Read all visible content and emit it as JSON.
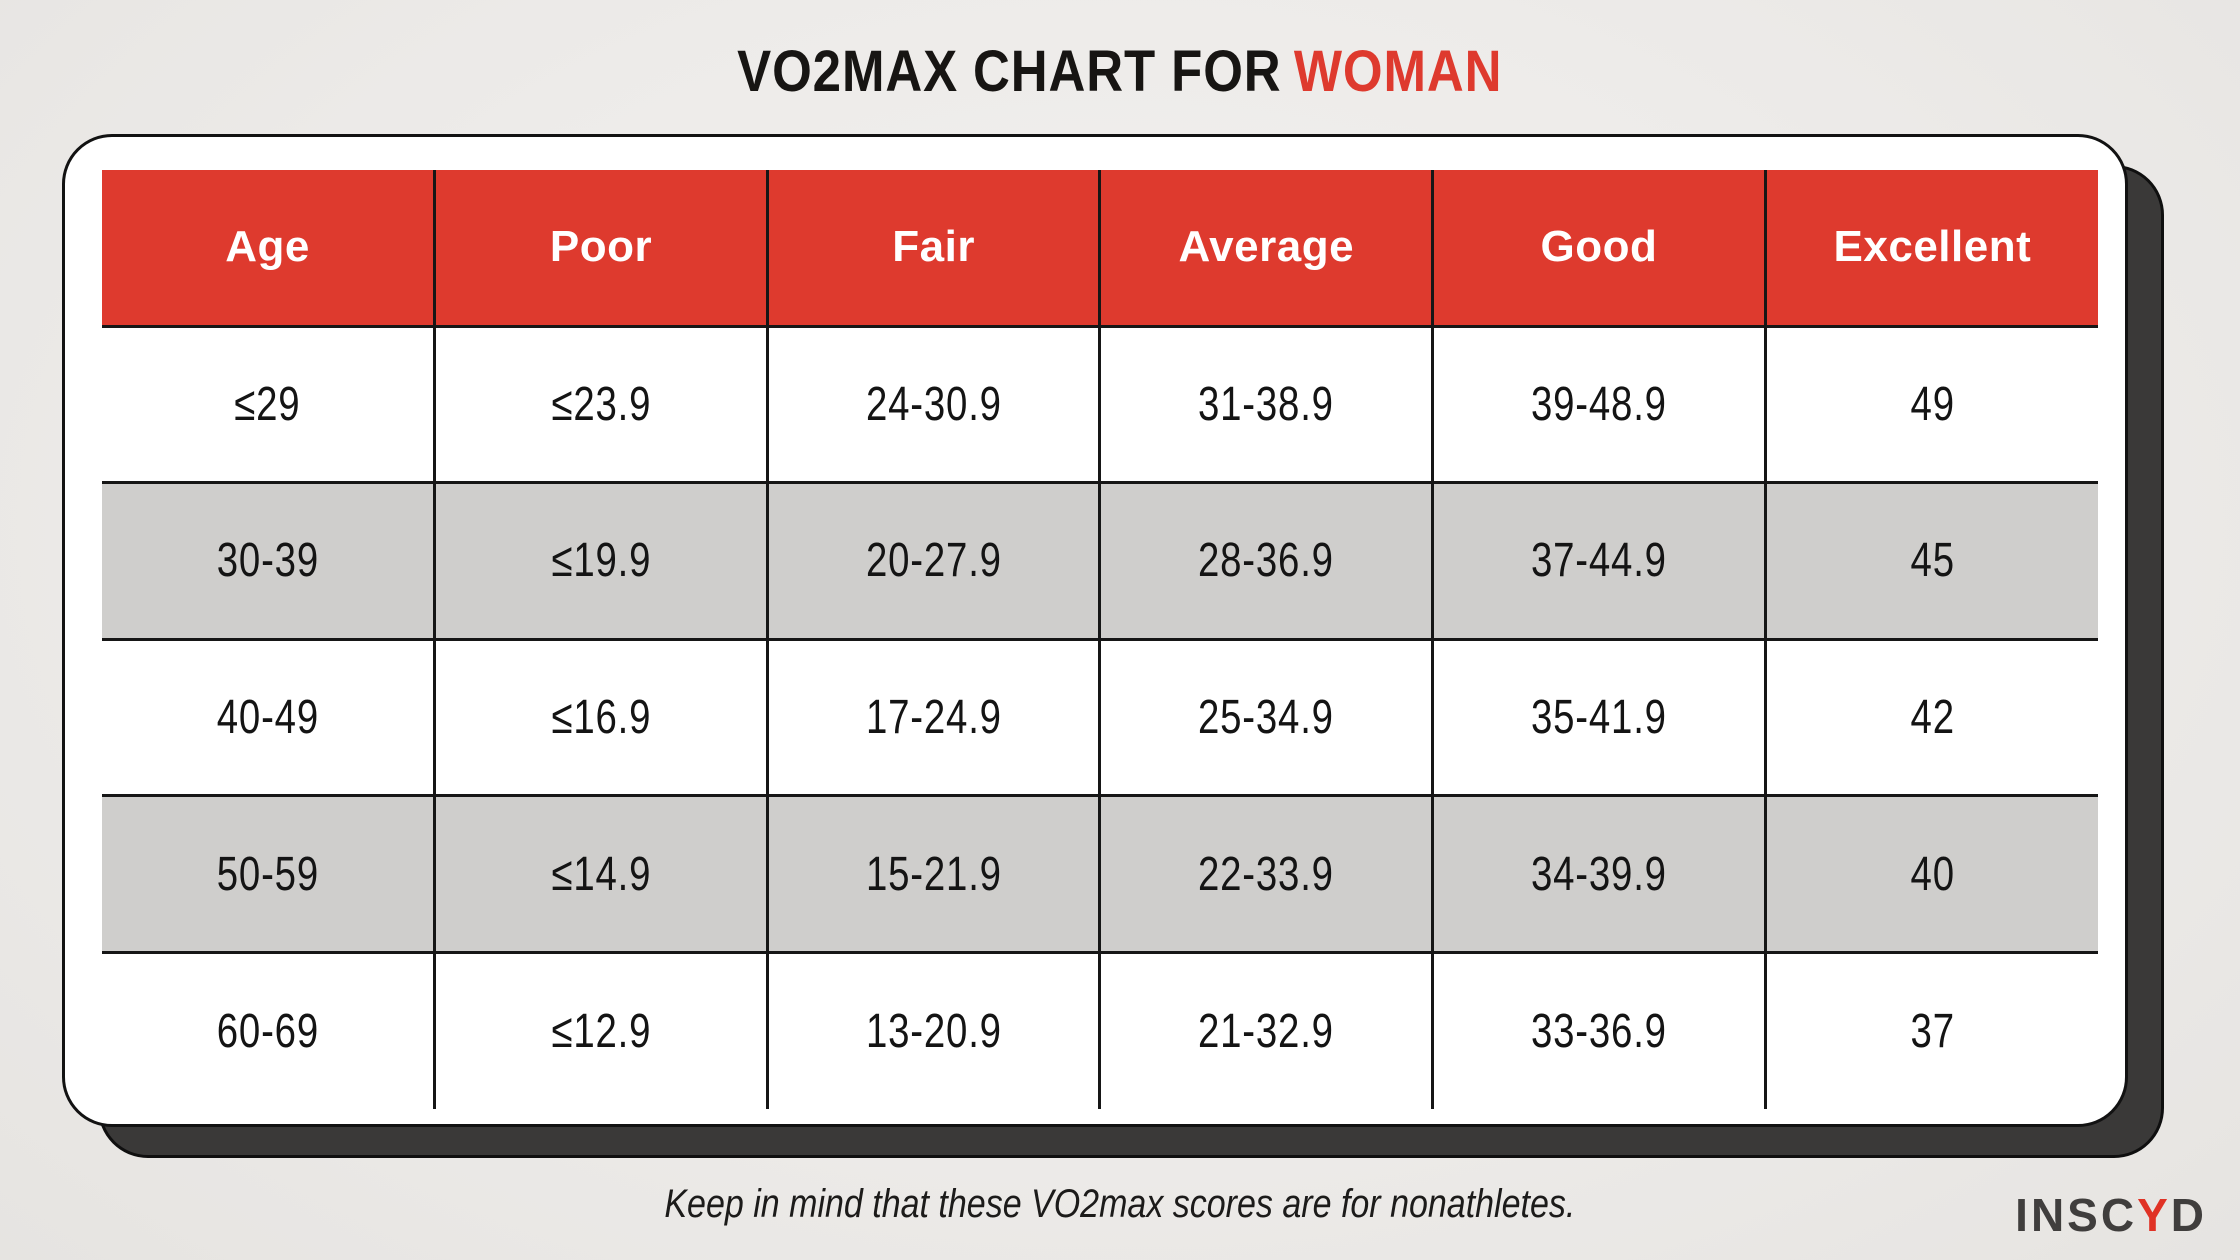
{
  "title": {
    "prefix": "VO2MAX CHART FOR",
    "highlight": "WOMAN"
  },
  "chart_data": {
    "type": "table",
    "title": "VO2MAX CHART FOR WOMAN",
    "columns": [
      "Age",
      "Poor",
      "Fair",
      "Average",
      "Good",
      "Excellent"
    ],
    "rows": [
      [
        "≤29",
        "≤23.9",
        "24-30.9",
        "31-38.9",
        "39-48.9",
        "49"
      ],
      [
        "30-39",
        "≤19.9",
        "20-27.9",
        "28-36.9",
        "37-44.9",
        "45"
      ],
      [
        "40-49",
        "≤16.9",
        "17-24.9",
        "25-34.9",
        "35-41.9",
        "42"
      ],
      [
        "50-59",
        "≤14.9",
        "15-21.9",
        "22-33.9",
        "34-39.9",
        "40"
      ],
      [
        "60-69",
        "≤12.9",
        "13-20.9",
        "21-32.9",
        "33-36.9",
        "37"
      ]
    ],
    "note": "Keep in mind that these VO2max scores are for nonathletes.",
    "layout_hints": {
      "header_style": "red band, white bold text",
      "zebra_striping": "rows 2 and 4 gray",
      "grid": "black column and row separators, no outer table border"
    }
  },
  "footer": {
    "note": "Keep in mind that these VO2max scores are for nonathletes."
  },
  "logo": {
    "pre": "INSC",
    "highlight": "Y",
    "post": "D"
  },
  "colors": {
    "accent_red": "#de3a2e",
    "row_alt_gray": "#cfcecc",
    "card_bg": "#ffffff",
    "card_offset_shadow": "#3a3938",
    "grid_border": "#161616",
    "page_bg": "#edebe9",
    "title_text": "#171513",
    "header_text": "#ffffff"
  }
}
